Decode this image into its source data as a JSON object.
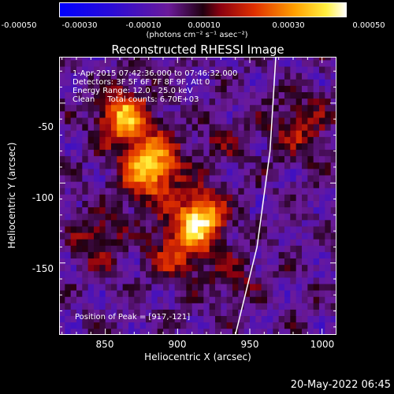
{
  "colorbar": {
    "ticks": [
      "-0.00050",
      "-0.00030",
      "-0.00010",
      "0.00010",
      "0.00030",
      "0.00050"
    ],
    "units": "(photons cm⁻² s⁻¹ asec⁻²)",
    "range": [
      -0.0005,
      0.0005
    ]
  },
  "info": {
    "time": "1-Apr-2015 07:42:36.000 to 07:46:32.000",
    "detectors": "Detectors: 3F 5F 6F 7F 8F 9F, Att 0",
    "energy": "Energy Range: 12.0 - 25.0 keV",
    "clean": "Clean     Total counts: 6.70E+03"
  },
  "peak_text": "Position of Peak = [917,-121]",
  "timestamp": "20-May-2022 06:45",
  "colors": {
    "background": "#000000",
    "limb": "#ffffff"
  },
  "chart_data": {
    "type": "heatmap",
    "title": "Reconstructed RHESSI Image",
    "xlabel": "Heliocentric X (arcsec)",
    "ylabel": "Heliocentric Y (arcsec)",
    "xlim": [
      818,
      1010
    ],
    "ylim": [
      -195,
      -21
    ],
    "xticks": [
      850,
      900,
      950,
      1000
    ],
    "yticks": [
      -50,
      -100,
      -150
    ],
    "x_tick_labels": [
      "850",
      "900",
      "950",
      "1000"
    ],
    "y_tick_labels": [
      "-50",
      "-100",
      "-150"
    ],
    "colormap": "blue-purple-red-yellow-white",
    "peak": [
      917,
      -121
    ],
    "limb_points": [
      [
        940,
        -195
      ],
      [
        955,
        -140
      ],
      [
        964,
        -80
      ],
      [
        968,
        -21
      ]
    ],
    "sources": [
      {
        "x": 862,
        "y": -58,
        "intensity": 0.00045,
        "sigma": 12
      },
      {
        "x": 882,
        "y": -90,
        "intensity": 0.0005,
        "sigma": 14
      },
      {
        "x": 917,
        "y": -121,
        "intensity": 0.0005,
        "sigma": 11
      },
      {
        "x": 902,
        "y": -140,
        "intensity": 0.0003,
        "sigma": 14
      },
      {
        "x": 845,
        "y": -135,
        "intensity": 0.0002,
        "sigma": 12
      },
      {
        "x": 940,
        "y": -160,
        "intensity": 0.00015,
        "sigma": 10
      },
      {
        "x": 985,
        "y": -65,
        "intensity": 0.0002,
        "sigma": 14
      },
      {
        "x": 930,
        "y": -75,
        "intensity": 0.00012,
        "sigma": 10
      }
    ]
  }
}
